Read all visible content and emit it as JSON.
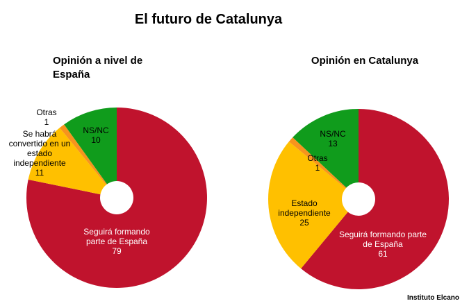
{
  "title": "El futuro de Catalunya",
  "source": "Instituto Elcano",
  "chart_data": [
    {
      "type": "pie",
      "title": [
        "Opinión a nivel de",
        "España"
      ],
      "slices": [
        {
          "label": [
            "Seguirá formando",
            "parte de España"
          ],
          "value": 79,
          "color": "#c0132d"
        },
        {
          "label": [
            "Se habrá",
            "convertido en un",
            "estado",
            "independiente"
          ],
          "value": 11,
          "color": "#ffc000"
        },
        {
          "label": [
            "Otras"
          ],
          "value": 1,
          "color": "#f7941d"
        },
        {
          "label": [
            "NS/NC"
          ],
          "value": 10,
          "color": "#109c1c"
        }
      ]
    },
    {
      "type": "pie",
      "title": [
        "Opinión en Catalunya"
      ],
      "slices": [
        {
          "label": [
            "Seguirá formando parte",
            "de España"
          ],
          "value": 61,
          "color": "#c0132d"
        },
        {
          "label": [
            "Estado",
            "independiente"
          ],
          "value": 25,
          "color": "#ffc000"
        },
        {
          "label": [
            "Otras"
          ],
          "value": 1,
          "color": "#f7941d"
        },
        {
          "label": [
            "NS/NC"
          ],
          "value": 13,
          "color": "#109c1c"
        }
      ]
    }
  ]
}
